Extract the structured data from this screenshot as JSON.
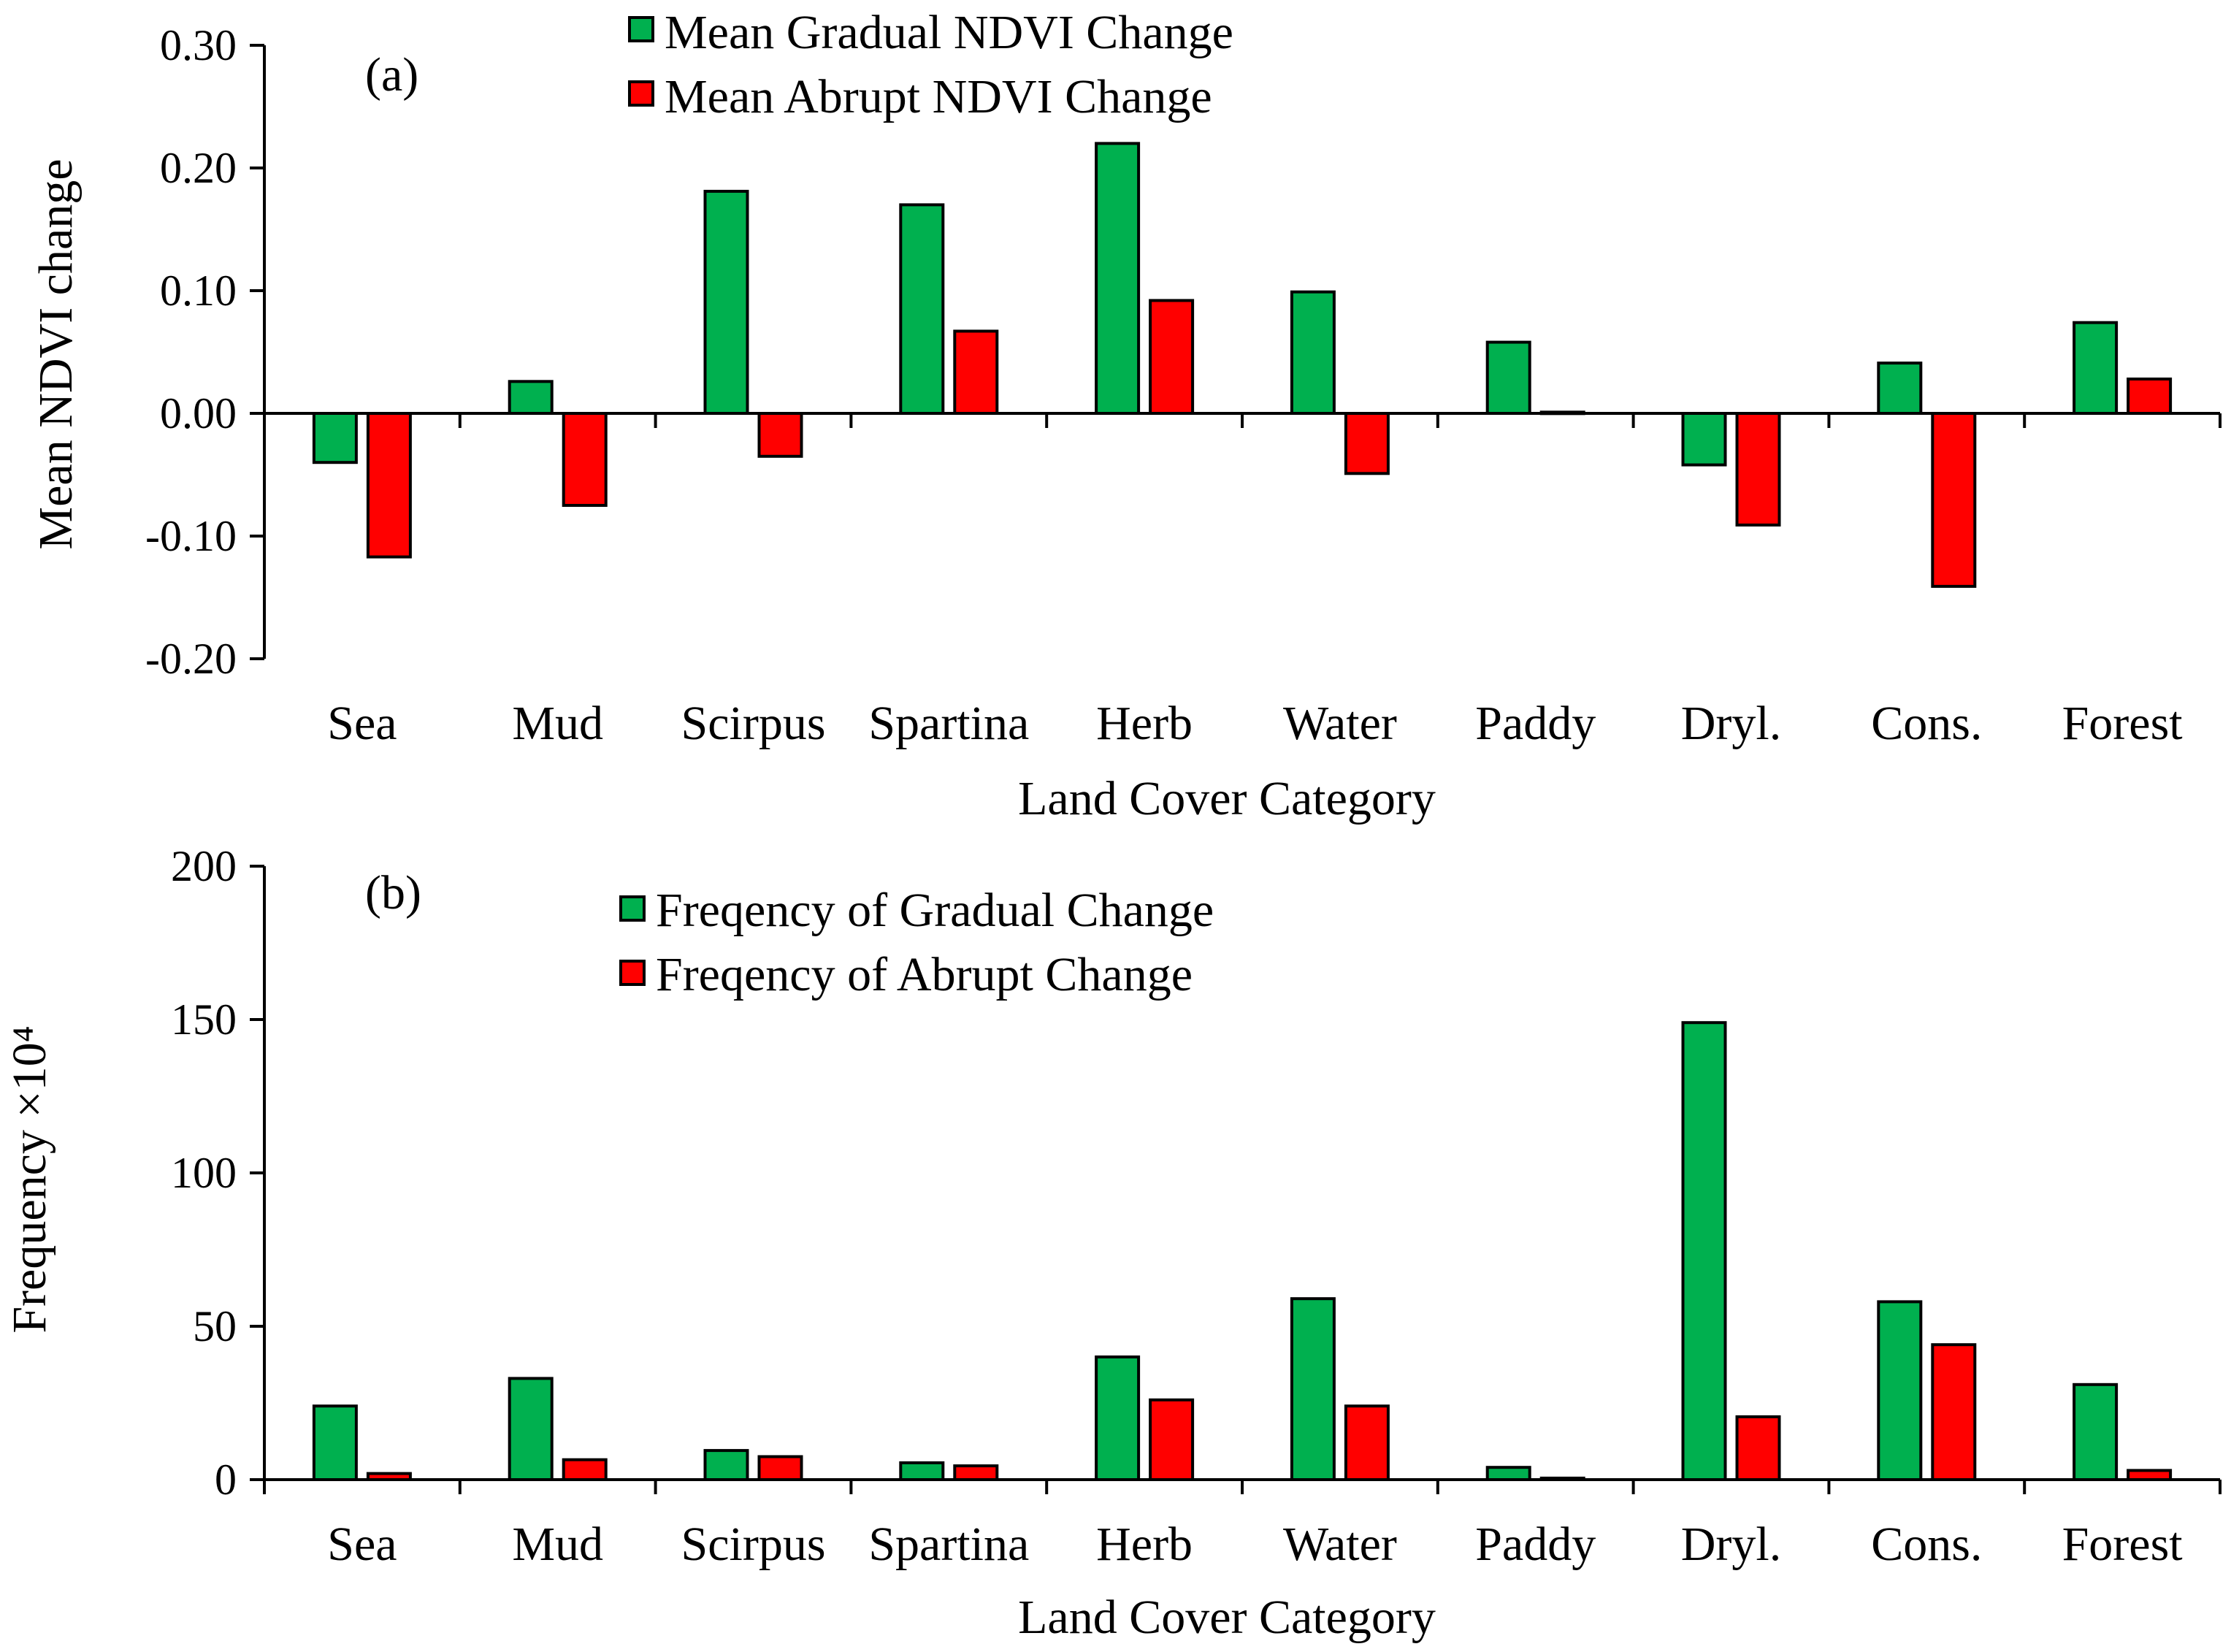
{
  "colors": {
    "gradual": "#00b04f",
    "abrupt": "#ff0000",
    "axis": "#000000"
  },
  "chart_data": [
    {
      "type": "bar",
      "panel_label": "(a)",
      "categories": [
        "Sea",
        "Mud",
        "Scirpus",
        "Spartina",
        "Herb",
        "Water",
        "Paddy",
        "Dryl.",
        "Cons.",
        "Forest"
      ],
      "series": [
        {
          "name": "Mean Gradual NDVI Change",
          "color": "#00b04f",
          "values": [
            -0.04,
            0.026,
            0.181,
            0.17,
            0.22,
            0.099,
            0.058,
            -0.042,
            0.041,
            0.074
          ]
        },
        {
          "name": "Mean Abrupt NDVI Change",
          "color": "#ff0000",
          "values": [
            -0.117,
            -0.075,
            -0.035,
            0.067,
            0.092,
            -0.049,
            0.001,
            -0.091,
            -0.141,
            0.028
          ]
        }
      ],
      "xlabel": "Land Cover Category",
      "ylabel": "Mean NDVI change",
      "ylim": [
        -0.2,
        0.3
      ],
      "yticks": [
        0.3,
        0.2,
        0.1,
        0.0,
        -0.1,
        -0.2
      ],
      "ytick_labels": [
        "0.30",
        "0.20",
        "0.10",
        "0.00",
        "-0.10",
        "-0.20"
      ],
      "legend_position": "top-center",
      "grid": false
    },
    {
      "type": "bar",
      "panel_label": "(b)",
      "categories": [
        "Sea",
        "Mud",
        "Scirpus",
        "Spartina",
        "Herb",
        "Water",
        "Paddy",
        "Dryl.",
        "Cons.",
        "Forest"
      ],
      "series": [
        {
          "name": "Freqency of Gradual Change",
          "color": "#00b04f",
          "values": [
            24,
            33,
            9.5,
            5.5,
            40,
            59,
            4,
            149,
            58,
            31
          ]
        },
        {
          "name": "Freqency of Abrupt Change",
          "color": "#ff0000",
          "values": [
            2,
            6.5,
            7.5,
            4.5,
            26,
            24,
            0.5,
            20.5,
            44,
            3
          ]
        }
      ],
      "xlabel": "Land Cover Category",
      "ylabel": "Frequency ×10⁴",
      "ylim": [
        0,
        200
      ],
      "yticks": [
        200,
        150,
        100,
        50,
        0
      ],
      "ytick_labels": [
        "200",
        "150",
        "100",
        "50",
        "0"
      ],
      "legend_position": "top-center",
      "grid": false
    }
  ]
}
